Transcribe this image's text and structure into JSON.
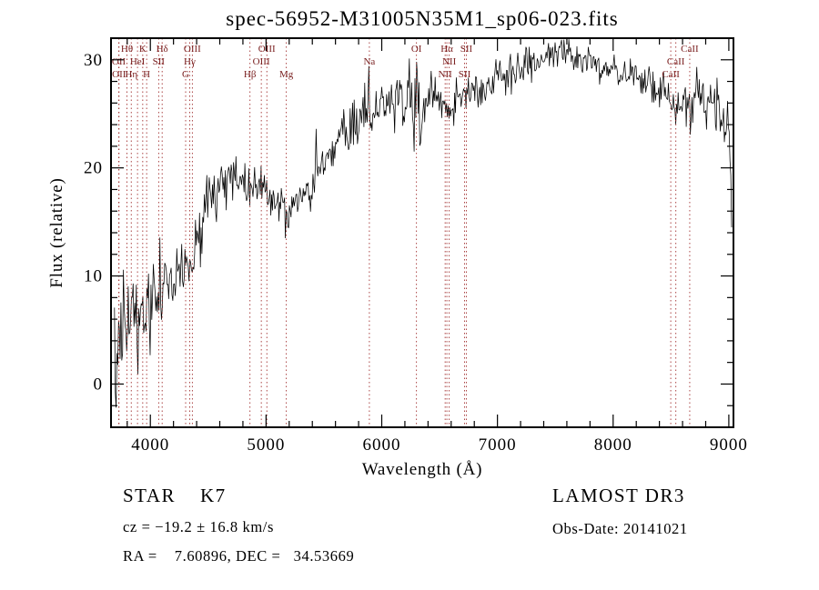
{
  "title": "spec-56952-M31005N35M1_sp06-023.fits",
  "footer": {
    "class_label": "STAR    K7",
    "survey": "LAMOST DR3",
    "cz": "cz = −19.2 ± 16.8 km/s",
    "obs_date": "Obs-Date: 20141021",
    "ra_dec": "RA =    7.60896, DEC =   34.53669"
  },
  "chart_data": {
    "type": "line",
    "title": "spec-56952-M31005N35M1_sp06-023.fits",
    "xlabel": "Wavelength (Å)",
    "ylabel": "Flux (relative)",
    "xlim": [
      3660,
      9040
    ],
    "ylim": [
      -4,
      32
    ],
    "x_major_ticks": [
      4000,
      5000,
      6000,
      7000,
      8000,
      9000
    ],
    "x_minor_step": 200,
    "y_major_ticks": [
      0,
      10,
      20,
      30
    ],
    "y_minor_step": 2,
    "grid": false,
    "line_color": "#000000",
    "marker_line_color": "#a33333",
    "marker_label_color": "#7a2020",
    "noise_seed": 20141021,
    "sample_step": 7,
    "envelope": [
      [
        3690,
        4.5
      ],
      [
        3720,
        5.2
      ],
      [
        3760,
        5.8
      ],
      [
        3800,
        6.0
      ],
      [
        3840,
        6.3
      ],
      [
        3880,
        6.0
      ],
      [
        3920,
        6.4
      ],
      [
        3960,
        7.2
      ],
      [
        4000,
        7.9
      ],
      [
        4040,
        8.4
      ],
      [
        4080,
        8.6
      ],
      [
        4120,
        9.0
      ],
      [
        4160,
        9.4
      ],
      [
        4200,
        9.8
      ],
      [
        4240,
        10.0
      ],
      [
        4280,
        10.0
      ],
      [
        4320,
        10.4
      ],
      [
        4360,
        11.3
      ],
      [
        4400,
        12.8
      ],
      [
        4440,
        14.3
      ],
      [
        4480,
        15.8
      ],
      [
        4520,
        16.9
      ],
      [
        4560,
        17.8
      ],
      [
        4600,
        18.4
      ],
      [
        4640,
        18.9
      ],
      [
        4680,
        19.3
      ],
      [
        4720,
        19.4
      ],
      [
        4760,
        19.1
      ],
      [
        4800,
        18.6
      ],
      [
        4840,
        18.1
      ],
      [
        4870,
        17.8
      ],
      [
        4900,
        18.4
      ],
      [
        4940,
        18.5
      ],
      [
        4980,
        18.1
      ],
      [
        5020,
        17.6
      ],
      [
        5060,
        17.1
      ],
      [
        5100,
        16.6
      ],
      [
        5140,
        16.1
      ],
      [
        5180,
        15.8
      ],
      [
        5220,
        16.0
      ],
      [
        5260,
        16.5
      ],
      [
        5300,
        17.0
      ],
      [
        5350,
        17.8
      ],
      [
        5400,
        18.6
      ],
      [
        5450,
        19.5
      ],
      [
        5500,
        20.4
      ],
      [
        5550,
        21.3
      ],
      [
        5600,
        22.2
      ],
      [
        5650,
        23.0
      ],
      [
        5700,
        23.7
      ],
      [
        5750,
        24.3
      ],
      [
        5800,
        24.8
      ],
      [
        5850,
        25.2
      ],
      [
        5900,
        25.4
      ],
      [
        5950,
        25.6
      ],
      [
        6000,
        25.9
      ],
      [
        6050,
        26.1
      ],
      [
        6100,
        26.2
      ],
      [
        6150,
        26.3
      ],
      [
        6200,
        26.2
      ],
      [
        6250,
        25.8
      ],
      [
        6290,
        24.8
      ],
      [
        6310,
        24.6
      ],
      [
        6340,
        25.6
      ],
      [
        6380,
        26.2
      ],
      [
        6430,
        26.6
      ],
      [
        6480,
        26.7
      ],
      [
        6530,
        26.2
      ],
      [
        6560,
        25.4
      ],
      [
        6600,
        25.8
      ],
      [
        6640,
        26.5
      ],
      [
        6690,
        26.9
      ],
      [
        6740,
        27.1
      ],
      [
        6790,
        27.4
      ],
      [
        6840,
        27.4
      ],
      [
        6870,
        26.9
      ],
      [
        6900,
        27.3
      ],
      [
        6950,
        27.9
      ],
      [
        7000,
        28.2
      ],
      [
        7050,
        28.5
      ],
      [
        7100,
        28.7
      ],
      [
        7150,
        28.6
      ],
      [
        7200,
        29.0
      ],
      [
        7250,
        29.4
      ],
      [
        7300,
        29.7
      ],
      [
        7350,
        30.0
      ],
      [
        7400,
        30.2
      ],
      [
        7450,
        30.4
      ],
      [
        7500,
        30.5
      ],
      [
        7550,
        30.6
      ],
      [
        7600,
        30.2
      ],
      [
        7650,
        30.3
      ],
      [
        7700,
        30.2
      ],
      [
        7750,
        30.0
      ],
      [
        7800,
        29.8
      ],
      [
        7850,
        29.7
      ],
      [
        7900,
        29.6
      ],
      [
        7950,
        29.4
      ],
      [
        8000,
        29.3
      ],
      [
        8050,
        29.1
      ],
      [
        8100,
        29.0
      ],
      [
        8150,
        28.8
      ],
      [
        8200,
        28.5
      ],
      [
        8250,
        28.2
      ],
      [
        8300,
        27.9
      ],
      [
        8350,
        27.6
      ],
      [
        8400,
        27.2
      ],
      [
        8450,
        26.8
      ],
      [
        8500,
        26.1
      ],
      [
        8520,
        26.5
      ],
      [
        8545,
        25.9
      ],
      [
        8580,
        26.4
      ],
      [
        8620,
        26.5
      ],
      [
        8662,
        25.8
      ],
      [
        8700,
        26.4
      ],
      [
        8750,
        26.4
      ],
      [
        8800,
        26.2
      ],
      [
        8850,
        26.0
      ],
      [
        8900,
        25.7
      ],
      [
        8950,
        25.2
      ],
      [
        9000,
        24.3
      ],
      [
        9015,
        22.0
      ],
      [
        9030,
        14.0
      ]
    ],
    "noise_sigma": [
      [
        3690,
        3.0
      ],
      [
        3780,
        2.6
      ],
      [
        3900,
        2.3
      ],
      [
        4050,
        2.1
      ],
      [
        4200,
        1.9
      ],
      [
        4350,
        1.7
      ],
      [
        4500,
        1.4
      ],
      [
        4700,
        1.2
      ],
      [
        4900,
        1.1
      ],
      [
        5100,
        1.0
      ],
      [
        5400,
        1.0
      ],
      [
        5700,
        1.0
      ],
      [
        5850,
        1.5
      ],
      [
        5950,
        1.2
      ],
      [
        6150,
        1.3
      ],
      [
        6300,
        1.5
      ],
      [
        6400,
        1.0
      ],
      [
        6600,
        1.0
      ],
      [
        6800,
        0.85
      ],
      [
        7000,
        0.8
      ],
      [
        7300,
        0.75
      ],
      [
        7600,
        0.8
      ],
      [
        7900,
        0.8
      ],
      [
        8200,
        0.85
      ],
      [
        8500,
        1.0
      ],
      [
        8700,
        1.2
      ],
      [
        8900,
        1.4
      ],
      [
        9030,
        1.3
      ]
    ],
    "spikes": [
      [
        3703,
        -6.5
      ],
      [
        3760,
        -3.5
      ],
      [
        4478,
        3.0
      ],
      [
        4862,
        -2.0
      ],
      [
        5430,
        2.5
      ],
      [
        5888,
        4.2
      ],
      [
        5910,
        -3.2
      ],
      [
        6240,
        4.0
      ],
      [
        6303,
        5.0
      ],
      [
        6335,
        -3.0
      ],
      [
        8960,
        -2.5
      ]
    ],
    "spectral_lines": [
      {
        "label": "Hθ",
        "wl": 3798,
        "row": 1
      },
      {
        "label": "K",
        "wl": 3934,
        "row": 1
      },
      {
        "label": "Hδ",
        "wl": 4102,
        "row": 1
      },
      {
        "label": "OIII",
        "wl": 4363,
        "row": 1
      },
      {
        "label": "OIII",
        "wl": 5007,
        "row": 1
      },
      {
        "label": "OI",
        "wl": 6300,
        "row": 1
      },
      {
        "label": "Hα",
        "wl": 6563,
        "row": 1
      },
      {
        "label": "SII",
        "wl": 6731,
        "row": 1
      },
      {
        "label": "CaII",
        "wl": 8662,
        "row": 1
      },
      {
        "label": "OII",
        "wl": 3727,
        "row": 2
      },
      {
        "label": "HeI",
        "wl": 3889,
        "row": 2
      },
      {
        "label": "SII",
        "wl": 4072,
        "row": 2
      },
      {
        "label": "Hγ",
        "wl": 4340,
        "row": 2
      },
      {
        "label": "OIII",
        "wl": 4959,
        "row": 2
      },
      {
        "label": "Na",
        "wl": 5893,
        "row": 2
      },
      {
        "label": "NII",
        "wl": 6583,
        "row": 2
      },
      {
        "label": "CaII",
        "wl": 8542,
        "row": 2
      },
      {
        "label": "OII",
        "wl": 3729,
        "row": 3
      },
      {
        "label": "Hη",
        "wl": 3835,
        "row": 3
      },
      {
        "label": "H",
        "wl": 3968,
        "row": 3
      },
      {
        "label": "G",
        "wl": 4305,
        "row": 3
      },
      {
        "label": "Hβ",
        "wl": 4861,
        "row": 3
      },
      {
        "label": "Mg",
        "wl": 5175,
        "row": 3
      },
      {
        "label": "NII",
        "wl": 6548,
        "row": 3
      },
      {
        "label": "SII",
        "wl": 6716,
        "row": 3
      },
      {
        "label": "CaII",
        "wl": 8498,
        "row": 3
      }
    ]
  }
}
